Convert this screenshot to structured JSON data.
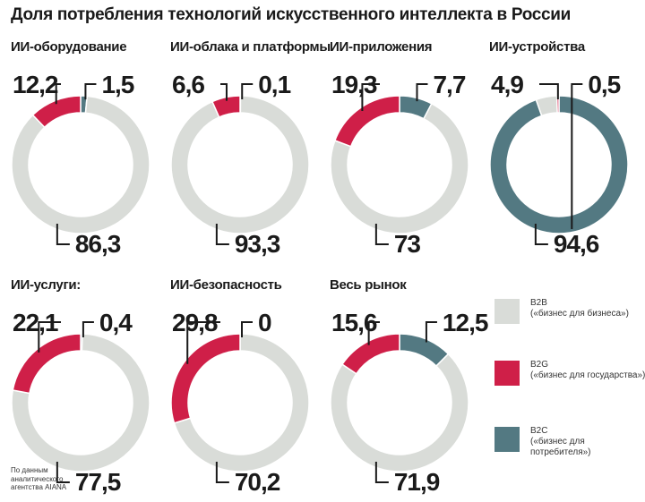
{
  "title": "Доля потребления технологий искусственного интеллекта в России",
  "source": "По данным аналитического агентства AIANA",
  "colors": {
    "b2b": "#d9dcd8",
    "b2g": "#cf1f48",
    "b2c": "#537982"
  },
  "legend": [
    {
      "key": "b2b",
      "code": "B2B",
      "description": "(«бизнес для бизнеса»)"
    },
    {
      "key": "b2g",
      "code": "B2G",
      "description": "(«бизнес для государства»)"
    },
    {
      "key": "b2c",
      "code": "B2C",
      "description": "(«бизнес для потребителя»)"
    }
  ],
  "chart_data": [
    {
      "type": "pie",
      "title": "ИИ-оборудование",
      "series": [
        {
          "name": "B2B",
          "value": 86.3,
          "label": "86,3"
        },
        {
          "name": "B2G",
          "value": 12.2,
          "label": "12,2"
        },
        {
          "name": "B2C",
          "value": 1.5,
          "label": "1,5"
        }
      ]
    },
    {
      "type": "pie",
      "title": "ИИ-облака и платформы",
      "series": [
        {
          "name": "B2B",
          "value": 93.3,
          "label": "93,3"
        },
        {
          "name": "B2G",
          "value": 6.6,
          "label": "6,6"
        },
        {
          "name": "B2C",
          "value": 0.1,
          "label": "0,1"
        }
      ]
    },
    {
      "type": "pie",
      "title": "ИИ-приложения",
      "series": [
        {
          "name": "B2B",
          "value": 73,
          "label": "73"
        },
        {
          "name": "B2G",
          "value": 19.3,
          "label": "19,3"
        },
        {
          "name": "B2C",
          "value": 7.7,
          "label": "7,7"
        }
      ]
    },
    {
      "type": "pie",
      "title": "ИИ-устройства",
      "series": [
        {
          "name": "B2B",
          "value": 4.9,
          "label": "4,9"
        },
        {
          "name": "B2G",
          "value": 0.5,
          "label": "0,5"
        },
        {
          "name": "B2C",
          "value": 94.6,
          "label": "94,6"
        }
      ]
    },
    {
      "type": "pie",
      "title": "ИИ-услуги:",
      "series": [
        {
          "name": "B2B",
          "value": 77.5,
          "label": "77,5"
        },
        {
          "name": "B2G",
          "value": 22.1,
          "label": "22,1"
        },
        {
          "name": "B2C",
          "value": 0.4,
          "label": "0,4"
        }
      ]
    },
    {
      "type": "pie",
      "title": "ИИ-безопасность",
      "series": [
        {
          "name": "B2B",
          "value": 70.2,
          "label": "70,2"
        },
        {
          "name": "B2G",
          "value": 29.8,
          "label": "29,8"
        },
        {
          "name": "B2C",
          "value": 0,
          "label": "0"
        }
      ]
    },
    {
      "type": "pie",
      "title": "Весь рынок",
      "series": [
        {
          "name": "B2B",
          "value": 71.9,
          "label": "71,9"
        },
        {
          "name": "B2G",
          "value": 15.6,
          "label": "15,6"
        },
        {
          "name": "B2C",
          "value": 12.5,
          "label": "12,5"
        }
      ]
    }
  ]
}
